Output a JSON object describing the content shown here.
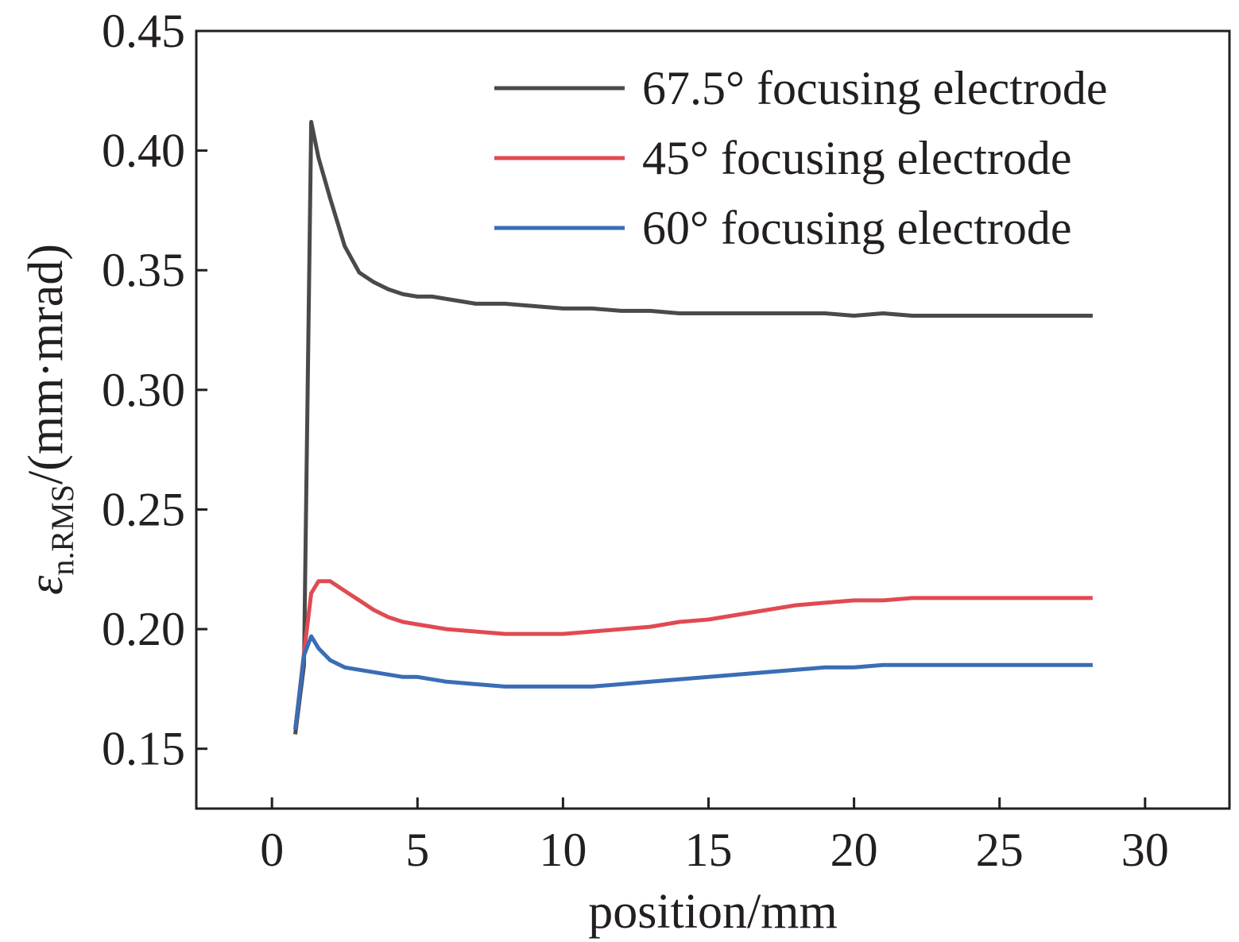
{
  "chart_data": {
    "type": "line",
    "xlabel": "position/mm",
    "ylabel": {
      "symbol": "ε",
      "subscript": "n.RMS",
      "unit": "/(mm·mrad)"
    },
    "xlim": [
      -2.6,
      32.9
    ],
    "ylim": [
      0.125,
      0.45
    ],
    "xticks": [
      0,
      5,
      10,
      15,
      20,
      25,
      30
    ],
    "yticks": [
      0.15,
      0.2,
      0.25,
      0.3,
      0.35,
      0.4,
      0.45
    ],
    "xtick_labels": [
      "0",
      "5",
      "10",
      "15",
      "20",
      "25",
      "30"
    ],
    "ytick_labels": [
      "0.15",
      "0.20",
      "0.25",
      "0.30",
      "0.35",
      "0.40",
      "0.45"
    ],
    "grid": false,
    "legend_position": "top-right",
    "series": [
      {
        "name": "67.5° focusing electrode",
        "color": "#4a4a4a",
        "x": [
          0.8,
          1.1,
          1.35,
          1.6,
          2.0,
          2.5,
          3.0,
          3.5,
          4.0,
          4.5,
          5.0,
          5.5,
          6.0,
          7.0,
          8.0,
          9.0,
          10.0,
          11.0,
          12.0,
          13.0,
          14.0,
          15.0,
          16.0,
          17.0,
          18.0,
          19.0,
          20.0,
          21.0,
          22.0,
          23.0,
          24.0,
          25.0,
          26.0,
          27.0,
          28.2
        ],
        "y": [
          0.156,
          0.185,
          0.412,
          0.397,
          0.38,
          0.36,
          0.349,
          0.345,
          0.342,
          0.34,
          0.339,
          0.339,
          0.338,
          0.336,
          0.336,
          0.335,
          0.334,
          0.334,
          0.333,
          0.333,
          0.332,
          0.332,
          0.332,
          0.332,
          0.332,
          0.332,
          0.331,
          0.332,
          0.331,
          0.331,
          0.331,
          0.331,
          0.331,
          0.331,
          0.331
        ]
      },
      {
        "name": "45° focusing electrode",
        "color": "#e04a52",
        "x": [
          0.8,
          1.1,
          1.35,
          1.6,
          2.0,
          2.5,
          3.0,
          3.5,
          4.0,
          4.5,
          5.0,
          5.5,
          6.0,
          7.0,
          8.0,
          9.0,
          10.0,
          11.0,
          12.0,
          13.0,
          14.0,
          15.0,
          16.0,
          17.0,
          18.0,
          19.0,
          20.0,
          21.0,
          22.0,
          23.0,
          24.0,
          25.0,
          26.0,
          27.0,
          28.2
        ],
        "y": [
          0.158,
          0.19,
          0.215,
          0.22,
          0.22,
          0.216,
          0.212,
          0.208,
          0.205,
          0.203,
          0.202,
          0.201,
          0.2,
          0.199,
          0.198,
          0.198,
          0.198,
          0.199,
          0.2,
          0.201,
          0.203,
          0.204,
          0.206,
          0.208,
          0.21,
          0.211,
          0.212,
          0.212,
          0.213,
          0.213,
          0.213,
          0.213,
          0.213,
          0.213,
          0.213
        ]
      },
      {
        "name": "60° focusing electrode",
        "color": "#3a6db5",
        "x": [
          0.8,
          1.1,
          1.35,
          1.6,
          2.0,
          2.5,
          3.0,
          3.5,
          4.0,
          4.5,
          5.0,
          5.5,
          6.0,
          7.0,
          8.0,
          9.0,
          10.0,
          11.0,
          12.0,
          13.0,
          14.0,
          15.0,
          16.0,
          17.0,
          18.0,
          19.0,
          20.0,
          21.0,
          22.0,
          23.0,
          24.0,
          25.0,
          26.0,
          27.0,
          28.2
        ],
        "y": [
          0.158,
          0.189,
          0.197,
          0.192,
          0.187,
          0.184,
          0.183,
          0.182,
          0.181,
          0.18,
          0.18,
          0.179,
          0.178,
          0.177,
          0.176,
          0.176,
          0.176,
          0.176,
          0.177,
          0.178,
          0.179,
          0.18,
          0.181,
          0.182,
          0.183,
          0.184,
          0.184,
          0.185,
          0.185,
          0.185,
          0.185,
          0.185,
          0.185,
          0.185,
          0.185
        ]
      }
    ]
  }
}
